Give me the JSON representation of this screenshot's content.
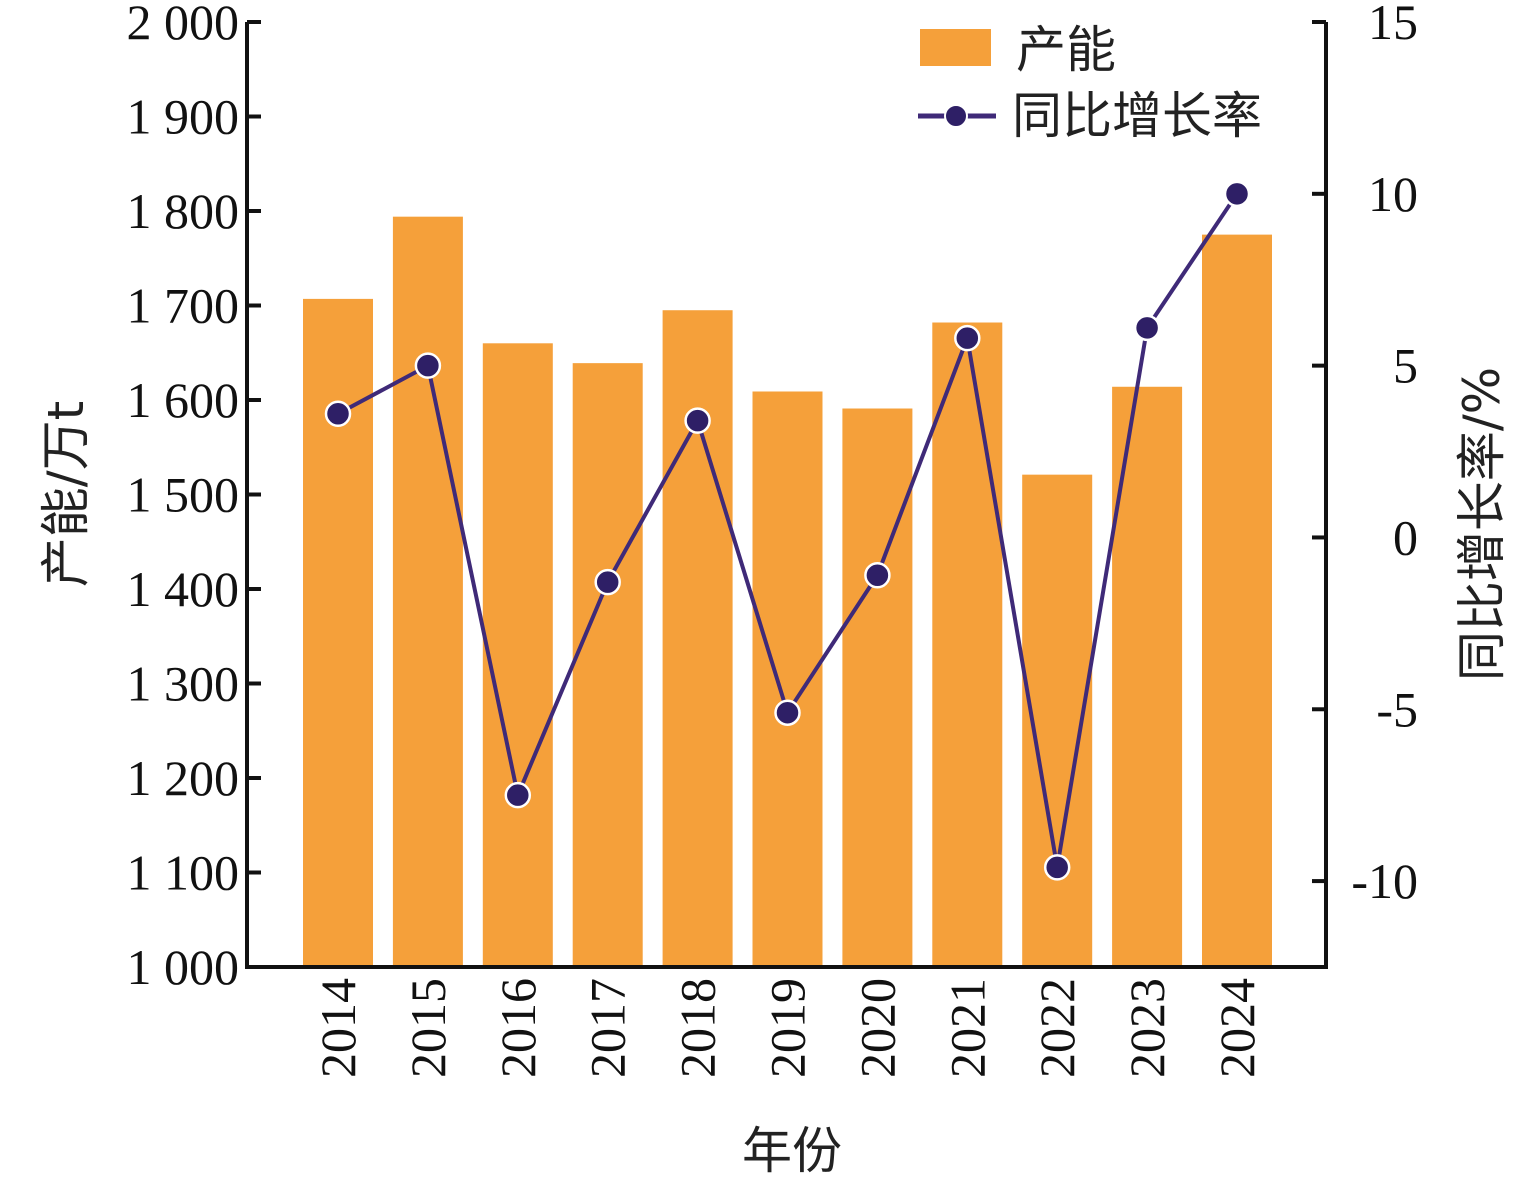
{
  "chart_data": {
    "type": "bar",
    "categories": [
      "2014",
      "2015",
      "2016",
      "2017",
      "2018",
      "2019",
      "2020",
      "2021",
      "2022",
      "2023",
      "2024"
    ],
    "series": [
      {
        "name": "产能",
        "type": "bar",
        "axis": "left",
        "color": "#F5A03A",
        "values": [
          1707,
          1794,
          1660,
          1639,
          1695,
          1609,
          1591,
          1682,
          1521,
          1614,
          1775
        ]
      },
      {
        "name": "同比增长率",
        "type": "line",
        "axis": "right",
        "color": "#3F2A78",
        "values": [
          3.6,
          5.0,
          -7.5,
          -1.3,
          3.4,
          -5.1,
          -1.1,
          5.8,
          -9.6,
          6.1,
          10.0
        ]
      }
    ],
    "xlabel": "年份",
    "ylabel": "产能/万t",
    "y2label": "同比增长率/%",
    "ylim": [
      1000,
      2000
    ],
    "y2lim": [
      -12.5,
      15
    ],
    "y_ticks": [
      "1 000",
      "1 100",
      "1 200",
      "1 300",
      "1 400",
      "1 500",
      "1 600",
      "1 700",
      "1 800",
      "1 900",
      "2 000"
    ],
    "y2_ticks": [
      "-10",
      "-5",
      "0",
      "5",
      "10",
      "15"
    ],
    "legend": {
      "placement": "top-right",
      "entries": [
        "产能",
        "同比增长率"
      ]
    },
    "grid": false
  }
}
